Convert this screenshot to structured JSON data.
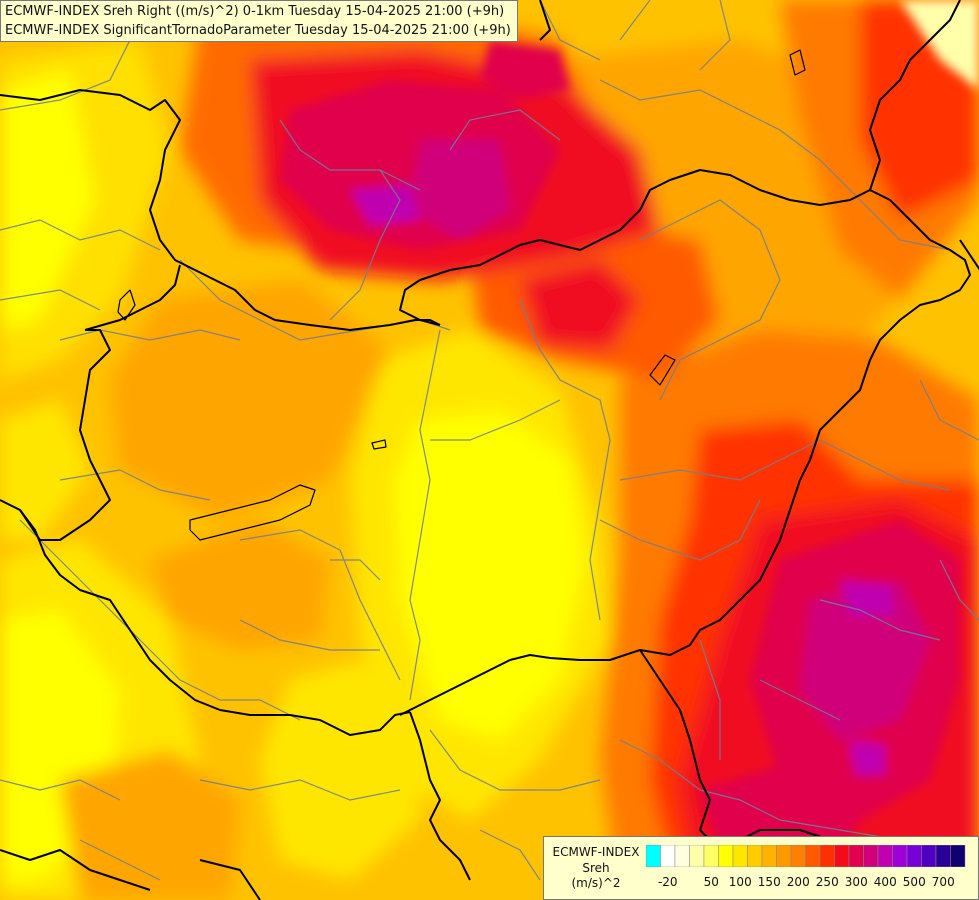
{
  "header": {
    "line1": "ECMWF-INDEX Sreh Right ((m/s)^2) 0-1km Tuesday 15-04-2025 21:00 (+9h)",
    "line2": "ECMWF-INDEX SignificantTornadoParameter Tuesday 15-04-2025 21:00 (+9h)"
  },
  "legend": {
    "title_lines": [
      "ECMWF-INDEX",
      "Sreh",
      "(m/s)^2"
    ],
    "colors": [
      "#00ffff",
      "#ffffff",
      "#ffffe0",
      "#ffffaa",
      "#ffff66",
      "#ffff00",
      "#ffe600",
      "#ffcc00",
      "#ffb300",
      "#ff9900",
      "#ff7f00",
      "#ff5a00",
      "#ff3000",
      "#f50a1a",
      "#e0004c",
      "#d0007a",
      "#c000b0",
      "#a000d8",
      "#7a00d8",
      "#5000c0",
      "#2a0098",
      "#100070"
    ],
    "tick_labels": [
      "-20",
      "50",
      "100",
      "150",
      "200",
      "250",
      "300",
      "400",
      "500",
      "700"
    ]
  }
}
